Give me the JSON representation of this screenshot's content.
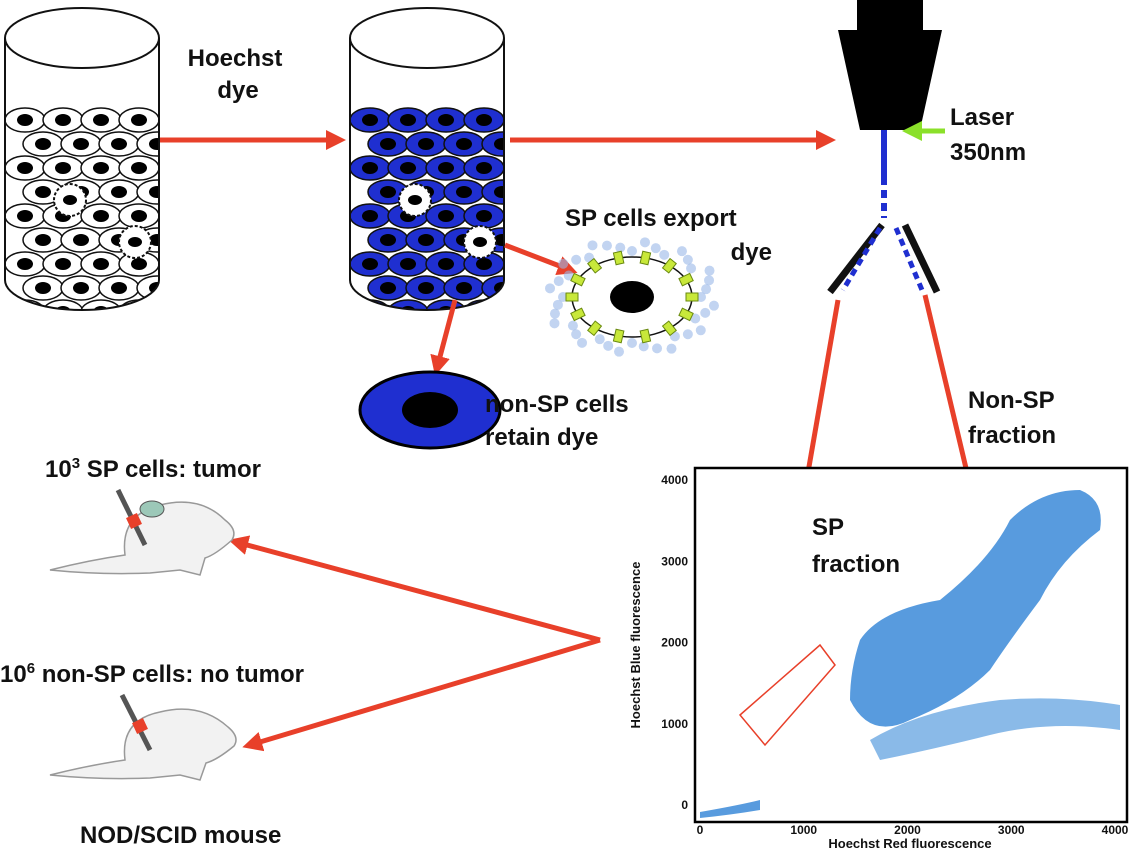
{
  "labels": {
    "hoechst_dye": [
      "Hoechst",
      "dye"
    ],
    "laser": [
      "Laser",
      "350nm"
    ],
    "sp_export": [
      "SP cells export",
      "dye"
    ],
    "non_sp_retain": [
      "non-SP cells",
      "retain dye"
    ],
    "non_sp_fraction": [
      "Non-SP",
      "fraction"
    ],
    "sp_fraction": [
      "SP",
      "fraction"
    ]
  },
  "mice": [
    {
      "count_base": "10",
      "count_exp": "3",
      "text": " SP cells: tumor"
    },
    {
      "count_base": "10",
      "count_exp": "6",
      "text": " non-SP cells: no tumor"
    }
  ],
  "mouse_model": "NOD/SCID mouse",
  "plot": {
    "x_label": "Hoechst Red fluorescence",
    "y_label": "Hoechst Blue fluorescence",
    "x_ticks": [
      0,
      1000,
      2000,
      3000,
      4000
    ],
    "y_ticks": [
      0,
      1000,
      2000,
      3000,
      4000
    ]
  }
}
